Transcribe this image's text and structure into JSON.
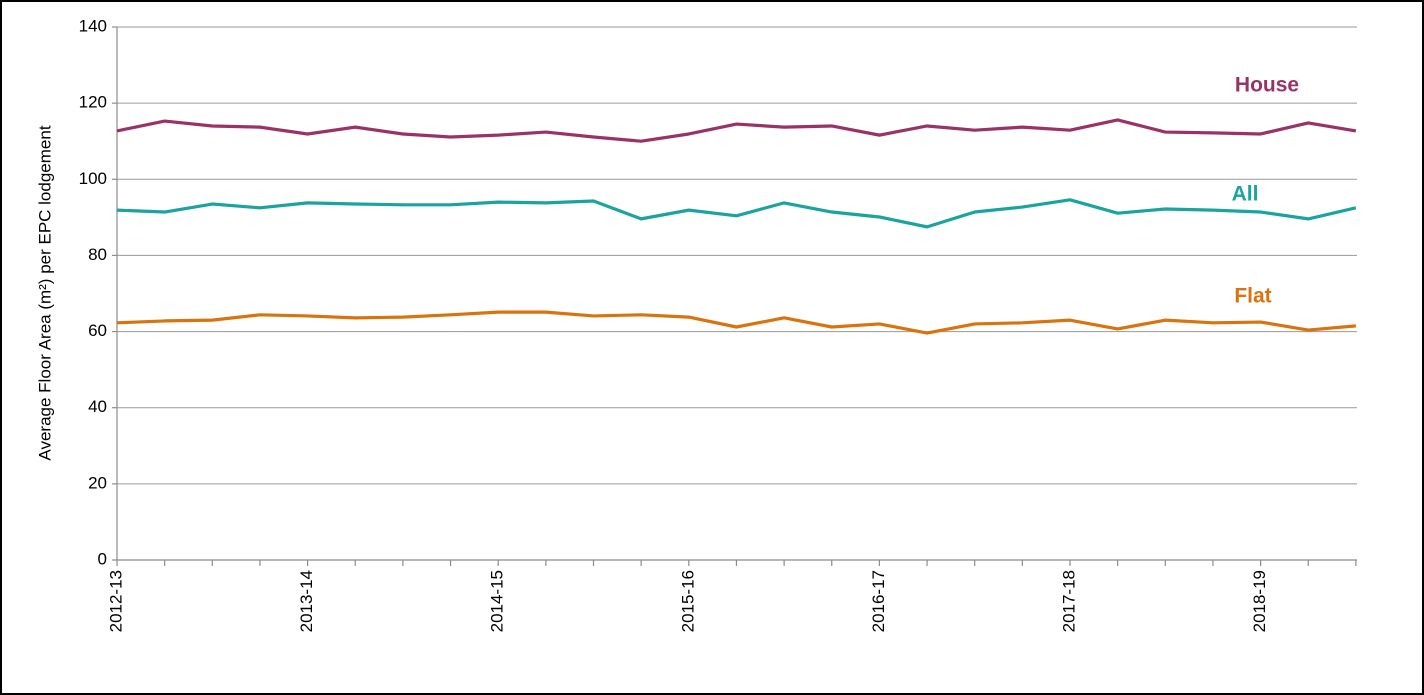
{
  "chart_data": {
    "type": "line",
    "y_label": "Average Floor Area (m²) per EPC lodgement",
    "categories": [
      "2012-13",
      null,
      null,
      null,
      "2013-14",
      null,
      null,
      null,
      "2014-15",
      null,
      null,
      null,
      "2015-16",
      null,
      null,
      null,
      "2016-17",
      null,
      null,
      null,
      "2017-18",
      null,
      null,
      null,
      "2018-19",
      null,
      null
    ],
    "series": [
      {
        "name": "House",
        "color": "#993366",
        "values": [
          112.7,
          115.3,
          114,
          113.7,
          111.9,
          113.7,
          111.9,
          111.1,
          111.6,
          112.4,
          111.1,
          110,
          111.9,
          114.5,
          113.7,
          114,
          111.6,
          114,
          112.9,
          113.7,
          112.9,
          115.6,
          112.4,
          112.2,
          111.9,
          114.8,
          112.7
        ]
      },
      {
        "name": "All",
        "color": "#1ba3a0",
        "values": [
          91.9,
          91.4,
          93.5,
          92.5,
          93.8,
          93.5,
          93.3,
          93.3,
          94,
          93.8,
          94.3,
          89.6,
          91.9,
          90.4,
          93.8,
          91.4,
          90.1,
          87.5,
          91.4,
          92.7,
          94.6,
          91.1,
          92.2,
          91.9,
          91.4,
          89.6,
          92.5
        ]
      },
      {
        "name": "Flat",
        "color": "#d9730d",
        "values": [
          62.3,
          62.8,
          63,
          64.4,
          64.1,
          63.6,
          63.8,
          64.4,
          65.1,
          65.1,
          64.1,
          64.4,
          63.8,
          61.2,
          63.6,
          61.2,
          62,
          59.6,
          62,
          62.3,
          63,
          60.7,
          63,
          62.3,
          62.5,
          60.4,
          61.5
        ]
      }
    ],
    "ylim": [
      0,
      140
    ],
    "yticks": [
      0,
      20,
      40,
      60,
      80,
      100,
      120,
      140
    ],
    "grid": true
  }
}
